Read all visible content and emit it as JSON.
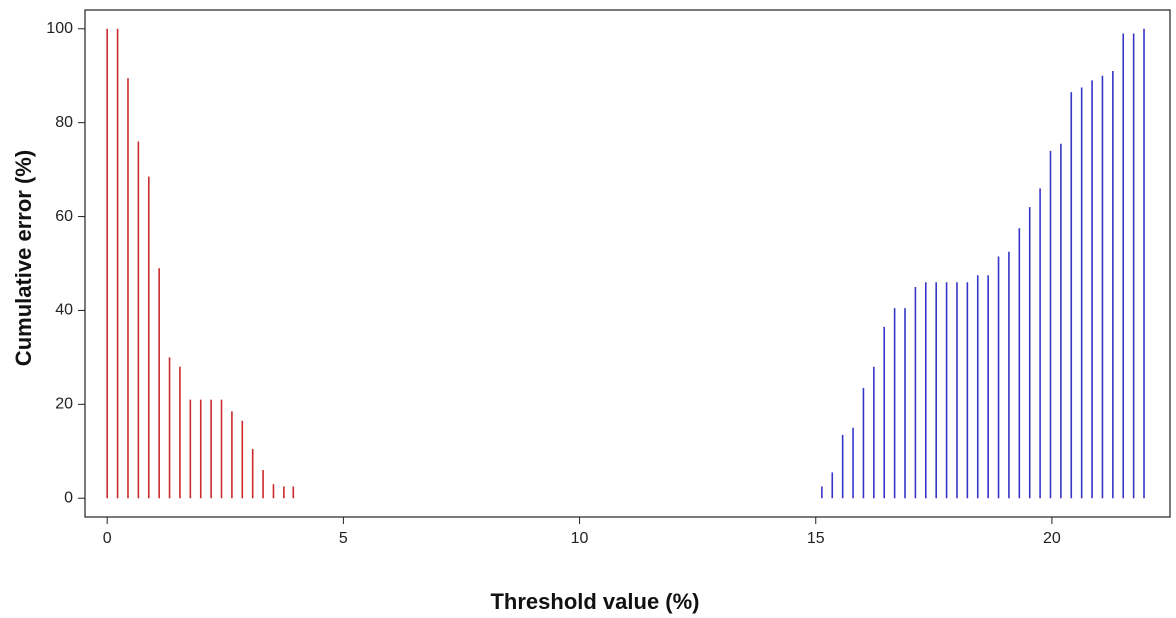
{
  "chart_data": {
    "type": "stem",
    "x_label": "Threshold value (%)",
    "y_label": "Cumulative error (%)",
    "xlim": [
      -0.47,
      22.5
    ],
    "ylim": [
      -4,
      104
    ],
    "xticks": [
      0,
      5,
      10,
      15,
      20
    ],
    "yticks": [
      0,
      20,
      40,
      60,
      80,
      100
    ],
    "grid": false,
    "series": [
      {
        "color": "#cc2a2a",
        "x": [
          0,
          0.22,
          0.44,
          0.66,
          0.88,
          1.1,
          1.32,
          1.54,
          1.76,
          1.98,
          2.2,
          2.42,
          2.64,
          2.86,
          3.08,
          3.3,
          3.52,
          3.74,
          3.94
        ],
        "values": [
          100,
          100,
          89.5,
          76,
          68.5,
          49,
          30,
          28,
          21,
          21,
          21,
          21,
          18.5,
          16.5,
          10.5,
          6,
          3,
          2.5,
          2.5
        ]
      },
      {
        "color": "#3535c8",
        "x": [
          15.13,
          15.35,
          15.57,
          15.79,
          16.01,
          16.23,
          16.45,
          16.67,
          16.89,
          17.11,
          17.33,
          17.55,
          17.77,
          17.99,
          18.21,
          18.43,
          18.65,
          18.87,
          19.09,
          19.31,
          19.53,
          19.75,
          19.97,
          20.19,
          20.41,
          20.63,
          20.85,
          21.07,
          21.29,
          21.51,
          21.73,
          21.95
        ],
        "values": [
          2.5,
          5.5,
          13.5,
          15,
          23.5,
          28,
          36.5,
          40.5,
          40.5,
          45,
          46,
          46,
          46,
          46,
          46,
          47.5,
          47.5,
          51.5,
          52.5,
          57.5,
          62,
          66,
          74,
          75.5,
          86.5,
          87.5,
          89,
          90,
          91,
          99,
          99,
          100
        ]
      }
    ]
  }
}
